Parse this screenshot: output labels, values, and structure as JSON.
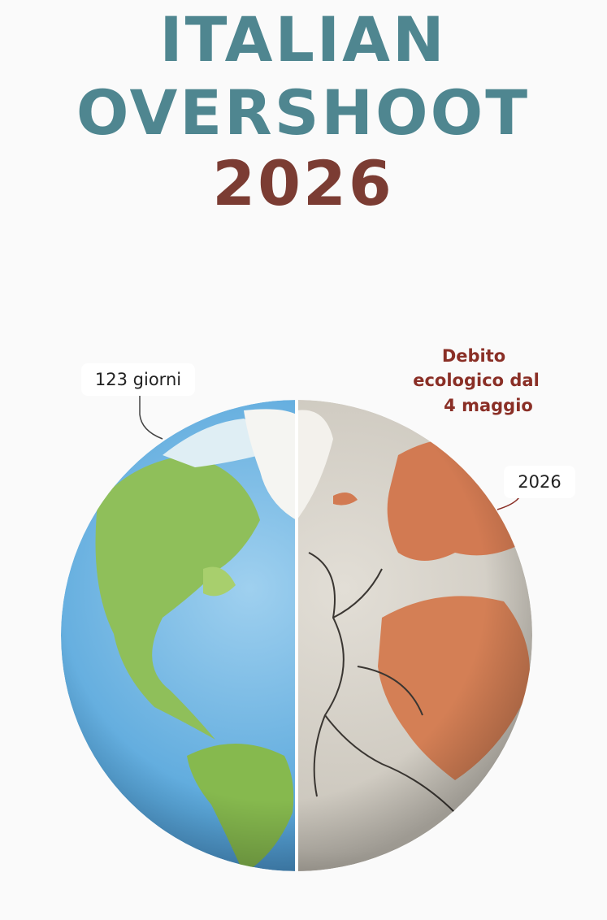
{
  "title": {
    "line1": "ITALIAN",
    "line2": "OVERSHOOT",
    "year": "2026"
  },
  "labels": {
    "days": "123 giorni",
    "debt": [
      "Debito",
      "ecologico dal",
      "4 maggio"
    ],
    "year": "2026"
  }
}
